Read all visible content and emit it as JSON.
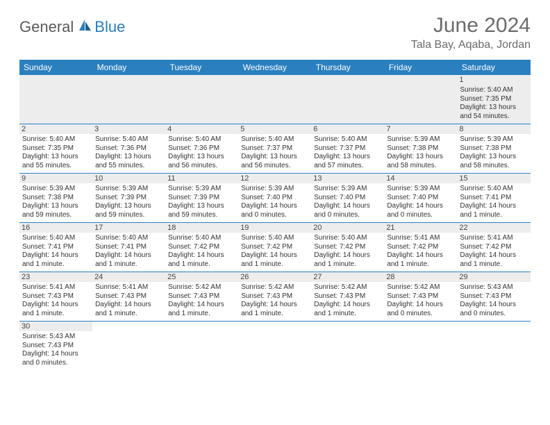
{
  "logo": {
    "part1": "General",
    "part2": "Blue"
  },
  "title": "June 2024",
  "location": "Tala Bay, Aqaba, Jordan",
  "colors": {
    "header_bg": "#2a7fbf",
    "header_text": "#ffffff",
    "daynum_bg": "#ededed",
    "cell_border": "#2a7fbf",
    "logo_gray": "#5a5a5a",
    "logo_blue": "#2a7fbf",
    "title_color": "#6b6b6b"
  },
  "weekdays": [
    "Sunday",
    "Monday",
    "Tuesday",
    "Wednesday",
    "Thursday",
    "Friday",
    "Saturday"
  ],
  "weeks": [
    [
      null,
      null,
      null,
      null,
      null,
      null,
      {
        "n": "1",
        "sr": "5:40 AM",
        "ss": "7:35 PM",
        "dl": "13 hours and 54 minutes."
      }
    ],
    [
      {
        "n": "2",
        "sr": "5:40 AM",
        "ss": "7:35 PM",
        "dl": "13 hours and 55 minutes."
      },
      {
        "n": "3",
        "sr": "5:40 AM",
        "ss": "7:36 PM",
        "dl": "13 hours and 55 minutes."
      },
      {
        "n": "4",
        "sr": "5:40 AM",
        "ss": "7:36 PM",
        "dl": "13 hours and 56 minutes."
      },
      {
        "n": "5",
        "sr": "5:40 AM",
        "ss": "7:37 PM",
        "dl": "13 hours and 56 minutes."
      },
      {
        "n": "6",
        "sr": "5:40 AM",
        "ss": "7:37 PM",
        "dl": "13 hours and 57 minutes."
      },
      {
        "n": "7",
        "sr": "5:39 AM",
        "ss": "7:38 PM",
        "dl": "13 hours and 58 minutes."
      },
      {
        "n": "8",
        "sr": "5:39 AM",
        "ss": "7:38 PM",
        "dl": "13 hours and 58 minutes."
      }
    ],
    [
      {
        "n": "9",
        "sr": "5:39 AM",
        "ss": "7:38 PM",
        "dl": "13 hours and 59 minutes."
      },
      {
        "n": "10",
        "sr": "5:39 AM",
        "ss": "7:39 PM",
        "dl": "13 hours and 59 minutes."
      },
      {
        "n": "11",
        "sr": "5:39 AM",
        "ss": "7:39 PM",
        "dl": "13 hours and 59 minutes."
      },
      {
        "n": "12",
        "sr": "5:39 AM",
        "ss": "7:40 PM",
        "dl": "14 hours and 0 minutes."
      },
      {
        "n": "13",
        "sr": "5:39 AM",
        "ss": "7:40 PM",
        "dl": "14 hours and 0 minutes."
      },
      {
        "n": "14",
        "sr": "5:39 AM",
        "ss": "7:40 PM",
        "dl": "14 hours and 0 minutes."
      },
      {
        "n": "15",
        "sr": "5:40 AM",
        "ss": "7:41 PM",
        "dl": "14 hours and 1 minute."
      }
    ],
    [
      {
        "n": "16",
        "sr": "5:40 AM",
        "ss": "7:41 PM",
        "dl": "14 hours and 1 minute."
      },
      {
        "n": "17",
        "sr": "5:40 AM",
        "ss": "7:41 PM",
        "dl": "14 hours and 1 minute."
      },
      {
        "n": "18",
        "sr": "5:40 AM",
        "ss": "7:42 PM",
        "dl": "14 hours and 1 minute."
      },
      {
        "n": "19",
        "sr": "5:40 AM",
        "ss": "7:42 PM",
        "dl": "14 hours and 1 minute."
      },
      {
        "n": "20",
        "sr": "5:40 AM",
        "ss": "7:42 PM",
        "dl": "14 hours and 1 minute."
      },
      {
        "n": "21",
        "sr": "5:41 AM",
        "ss": "7:42 PM",
        "dl": "14 hours and 1 minute."
      },
      {
        "n": "22",
        "sr": "5:41 AM",
        "ss": "7:42 PM",
        "dl": "14 hours and 1 minute."
      }
    ],
    [
      {
        "n": "23",
        "sr": "5:41 AM",
        "ss": "7:43 PM",
        "dl": "14 hours and 1 minute."
      },
      {
        "n": "24",
        "sr": "5:41 AM",
        "ss": "7:43 PM",
        "dl": "14 hours and 1 minute."
      },
      {
        "n": "25",
        "sr": "5:42 AM",
        "ss": "7:43 PM",
        "dl": "14 hours and 1 minute."
      },
      {
        "n": "26",
        "sr": "5:42 AM",
        "ss": "7:43 PM",
        "dl": "14 hours and 1 minute."
      },
      {
        "n": "27",
        "sr": "5:42 AM",
        "ss": "7:43 PM",
        "dl": "14 hours and 1 minute."
      },
      {
        "n": "28",
        "sr": "5:42 AM",
        "ss": "7:43 PM",
        "dl": "14 hours and 0 minutes."
      },
      {
        "n": "29",
        "sr": "5:43 AM",
        "ss": "7:43 PM",
        "dl": "14 hours and 0 minutes."
      }
    ],
    [
      {
        "n": "30",
        "sr": "5:43 AM",
        "ss": "7:43 PM",
        "dl": "14 hours and 0 minutes."
      },
      null,
      null,
      null,
      null,
      null,
      null
    ]
  ],
  "labels": {
    "sunrise": "Sunrise:",
    "sunset": "Sunset:",
    "daylight": "Daylight:"
  }
}
